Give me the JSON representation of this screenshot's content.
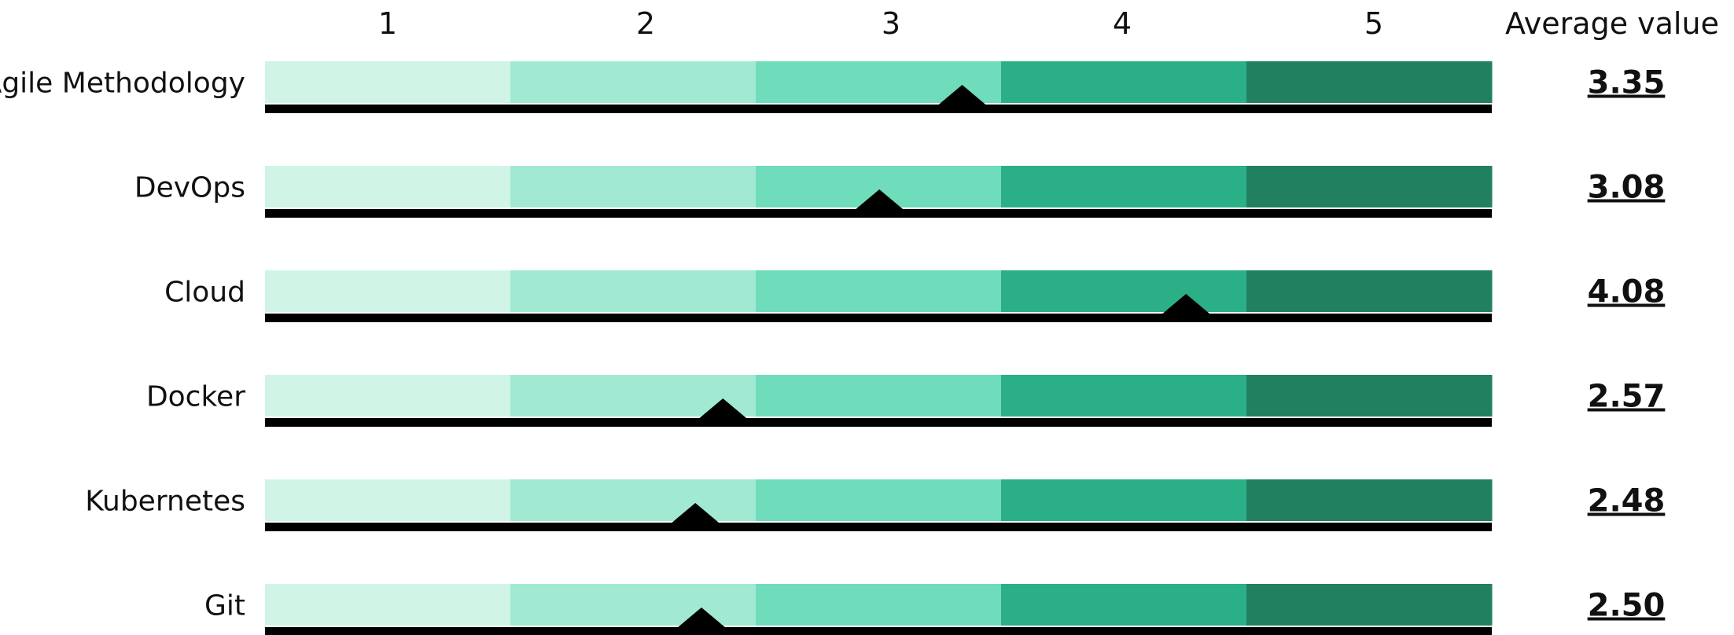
{
  "chart_data": {
    "type": "bar",
    "scale": [
      "1",
      "2",
      "3",
      "4",
      "5"
    ],
    "value_header": "Average value",
    "range": [
      1,
      5
    ],
    "band_colors": [
      "#d0f4e6",
      "#a2e9d3",
      "#6fdcbb",
      "#2aaf86",
      "#20805f"
    ],
    "marker_color": "#000000",
    "categories": [
      "Agile Methodology",
      "DevOps",
      "Cloud",
      "Docker",
      "Kubernetes",
      "Git"
    ],
    "values": [
      3.35,
      3.08,
      4.08,
      2.57,
      2.48,
      2.5
    ],
    "value_labels": [
      "3.35",
      "3.08",
      "4.08",
      "2.57",
      "2.48",
      "2.50"
    ]
  }
}
